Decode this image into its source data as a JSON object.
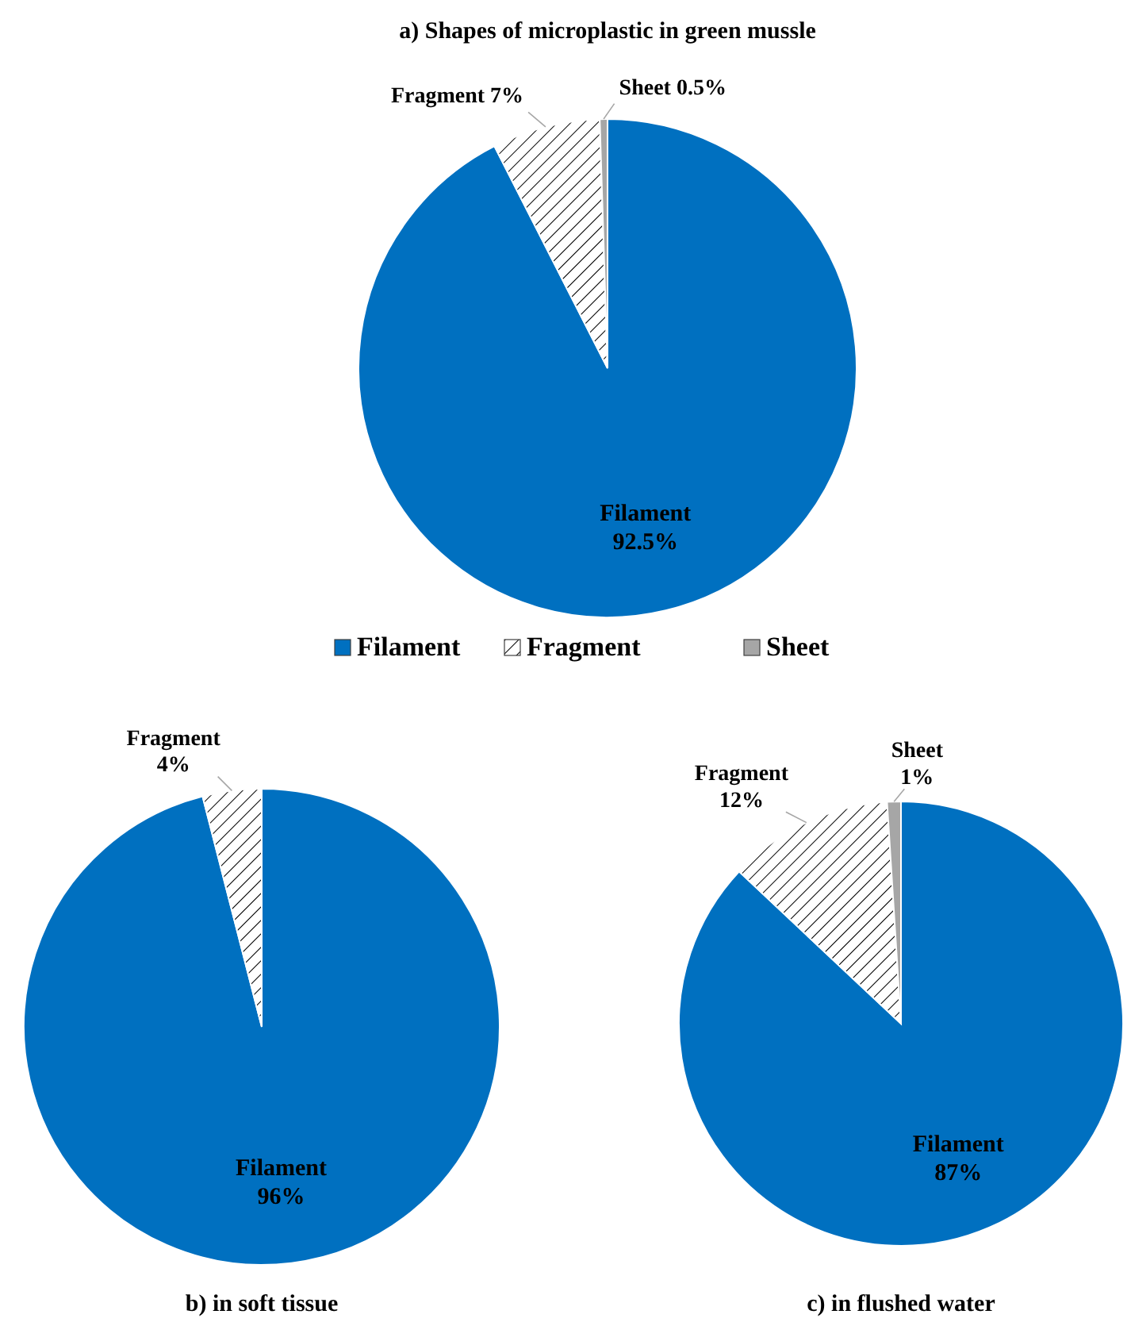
{
  "chart_data": [
    {
      "type": "pie",
      "title": "a) Shapes of microplastic in green mussle",
      "categories": [
        "Filament",
        "Fragment",
        "Sheet"
      ],
      "values": [
        92.5,
        7,
        0.5
      ],
      "colors": [
        "#0070c0",
        "#ffffff",
        "#a6a6a6"
      ],
      "value_labels": [
        "92.5%",
        "7%",
        "0.5%"
      ],
      "legend": "bottom"
    },
    {
      "type": "pie",
      "title": "b) in soft tissue",
      "categories": [
        "Filament",
        "Fragment"
      ],
      "values": [
        96,
        4
      ],
      "colors": [
        "#0070c0",
        "#ffffff"
      ],
      "value_labels": [
        "96%",
        "4%"
      ],
      "legend": false
    },
    {
      "type": "pie",
      "title": "c) in flushed water",
      "categories": [
        "Filament",
        "Fragment",
        "Sheet"
      ],
      "values": [
        87,
        12,
        1
      ],
      "colors": [
        "#0070c0",
        "#ffffff",
        "#a6a6a6"
      ],
      "value_labels": [
        "87%",
        "12%",
        "1%"
      ],
      "legend": false
    }
  ]
}
